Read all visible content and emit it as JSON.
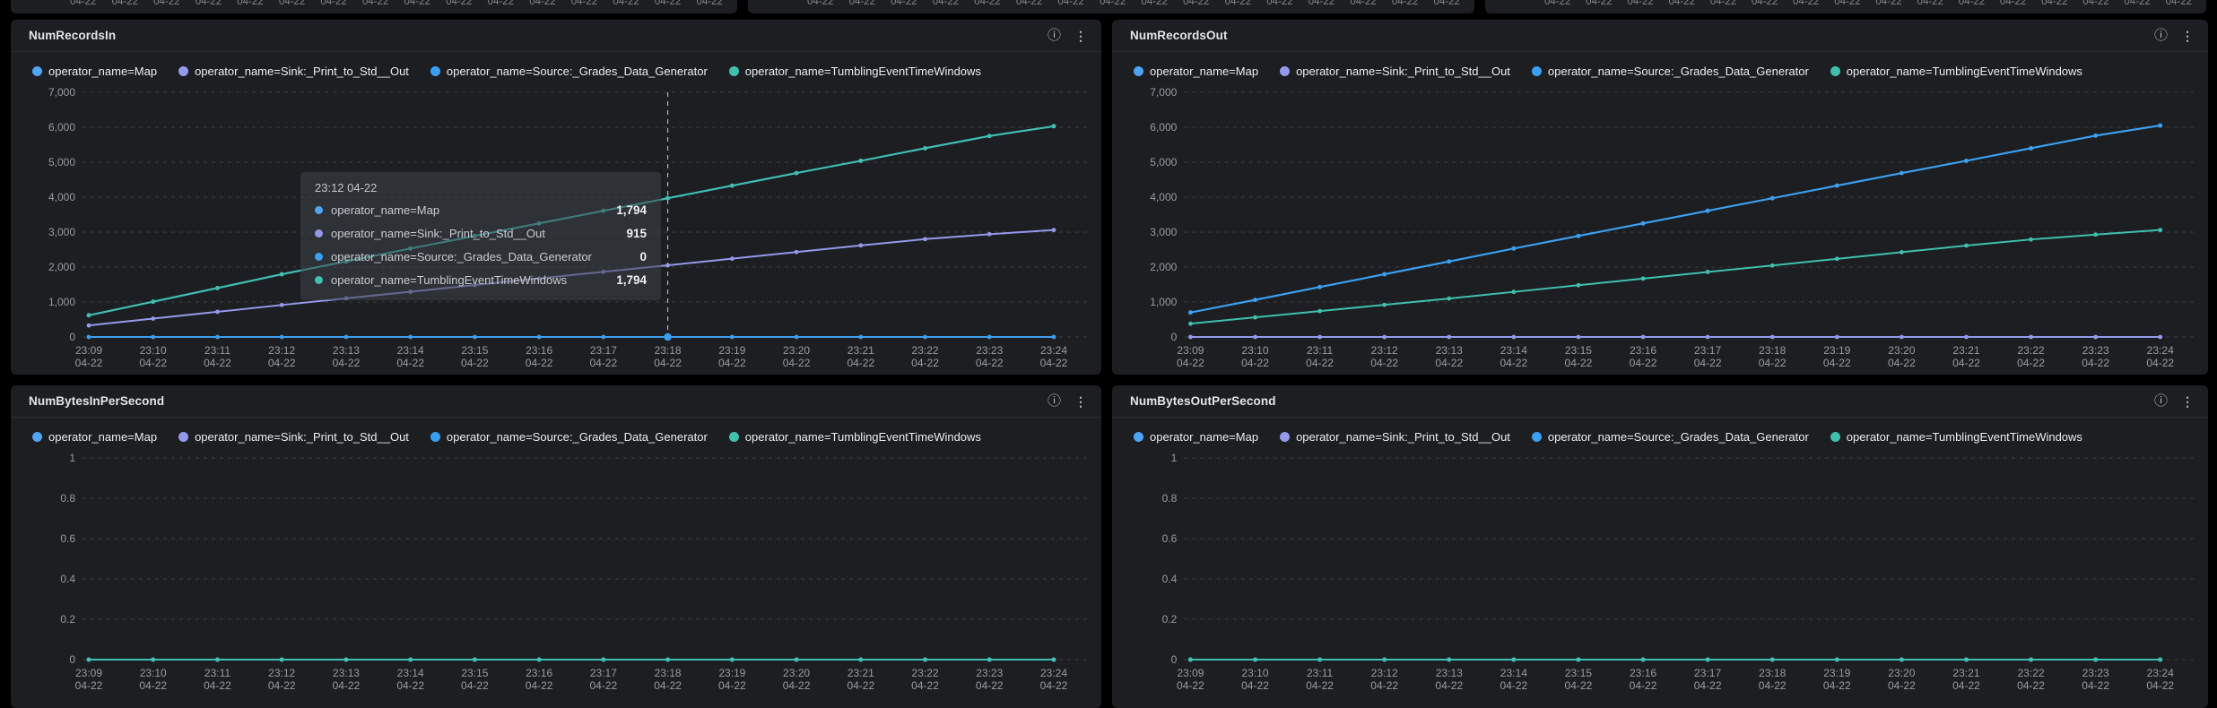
{
  "colors": {
    "page_bg": "#000000",
    "panel_bg": "#1c1e21",
    "grid_line": "#3a3d41",
    "axis_text": "#989ca1",
    "crosshair": "#c9cbce",
    "map": "#4FA5F3",
    "sink": "#9599EB",
    "source": "#3B9FF1",
    "tumbling": "#40C0B0"
  },
  "top_strip": {
    "clipped_axis_label": "04-22",
    "repeat": 16
  },
  "header_icons": [
    {
      "name": "info-icon",
      "glyph": "ⓘ"
    },
    {
      "name": "kebab-icon",
      "glyph": "⋮"
    }
  ],
  "panels": [
    {
      "title": "NumRecordsIn",
      "legend": [
        {
          "label": "operator_name=Map",
          "color": "#4FA5F3"
        },
        {
          "label": "operator_name=Sink:_Print_to_Std__Out",
          "color": "#9599EB"
        },
        {
          "label": "operator_name=Source:_Grades_Data_Generator",
          "color": "#3B9FF1"
        },
        {
          "label": "operator_name=TumblingEventTimeWindows",
          "color": "#40C0B0"
        }
      ],
      "chart_data": {
        "type": "line",
        "title": "NumRecordsIn",
        "x": [
          "23:09",
          "23:10",
          "23:11",
          "23:12",
          "23:13",
          "23:14",
          "23:15",
          "23:16",
          "23:17",
          "23:18",
          "23:19",
          "23:20",
          "23:21",
          "23:22",
          "23:23",
          "23:24"
        ],
        "x_date": "04-22",
        "ylim": [
          0,
          7000
        ],
        "yticks": [
          0,
          1000,
          2000,
          3000,
          4000,
          5000,
          6000,
          7000
        ],
        "grid": true,
        "legend_position": "top",
        "series": [
          {
            "name": "operator_name=Map",
            "color": "#4FA5F3",
            "values": [
              620,
              1010,
              1400,
              1794,
              2160,
              2530,
              2890,
              3250,
              3610,
              3970,
              4330,
              4690,
              5040,
              5400,
              5750,
              6030
            ]
          },
          {
            "name": "operator_name=Sink:_Print_to_Std__Out",
            "color": "#9599EB",
            "values": [
              330,
              525,
              720,
              915,
              1105,
              1295,
              1485,
              1675,
              1865,
              2050,
              2240,
              2430,
              2620,
              2800,
              2940,
              3060
            ]
          },
          {
            "name": "operator_name=Source:_Grades_Data_Generator",
            "color": "#3B9FF1",
            "values": [
              0,
              0,
              0,
              0,
              0,
              0,
              0,
              0,
              0,
              0,
              0,
              0,
              0,
              0,
              0,
              0
            ]
          },
          {
            "name": "operator_name=TumblingEventTimeWindows",
            "color": "#40C0B0",
            "values": [
              620,
              1010,
              1400,
              1794,
              2160,
              2530,
              2890,
              3250,
              3610,
              3970,
              4330,
              4690,
              5040,
              5400,
              5750,
              6030
            ]
          }
        ]
      },
      "tooltip": {
        "header": "23:12 04-22",
        "crosshair_tick": "23:18",
        "rows": [
          {
            "label": "operator_name=Map",
            "value": "1,794",
            "color": "#4FA5F3"
          },
          {
            "label": "operator_name=Sink:_Print_to_Std__Out",
            "value": "915",
            "color": "#9599EB"
          },
          {
            "label": "operator_name=Source:_Grades_Data_Generator",
            "value": "0",
            "color": "#3B9FF1"
          },
          {
            "label": "operator_name=TumblingEventTimeWindows",
            "value": "1,794",
            "color": "#40C0B0"
          }
        ]
      }
    },
    {
      "title": "NumRecordsOut",
      "legend": [
        {
          "label": "operator_name=Map",
          "color": "#4FA5F3"
        },
        {
          "label": "operator_name=Sink:_Print_to_Std__Out",
          "color": "#9599EB"
        },
        {
          "label": "operator_name=Source:_Grades_Data_Generator",
          "color": "#3B9FF1"
        },
        {
          "label": "operator_name=TumblingEventTimeWindows",
          "color": "#40C0B0"
        }
      ],
      "chart_data": {
        "type": "line",
        "title": "NumRecordsOut",
        "x": [
          "23:09",
          "23:10",
          "23:11",
          "23:12",
          "23:13",
          "23:14",
          "23:15",
          "23:16",
          "23:17",
          "23:18",
          "23:19",
          "23:20",
          "23:21",
          "23:22",
          "23:23",
          "23:24"
        ],
        "x_date": "04-22",
        "ylim": [
          0,
          7000
        ],
        "yticks": [
          0,
          1000,
          2000,
          3000,
          4000,
          5000,
          6000,
          7000
        ],
        "grid": true,
        "legend_position": "top",
        "series": [
          {
            "name": "operator_name=Map",
            "color": "#4FA5F3",
            "values": [
              700,
              1060,
              1430,
              1794,
              2160,
              2530,
              2890,
              3250,
              3610,
              3970,
              4330,
              4690,
              5040,
              5400,
              5760,
              6050
            ]
          },
          {
            "name": "operator_name=Sink:_Print_to_Std__Out",
            "color": "#9599EB",
            "values": [
              0,
              0,
              0,
              0,
              0,
              0,
              0,
              0,
              0,
              0,
              0,
              0,
              0,
              0,
              0,
              0
            ]
          },
          {
            "name": "operator_name=Source:_Grades_Data_Generator",
            "color": "#3B9FF1",
            "values": [
              700,
              1060,
              1430,
              1794,
              2160,
              2530,
              2890,
              3250,
              3610,
              3970,
              4330,
              4690,
              5040,
              5400,
              5760,
              6050
            ]
          },
          {
            "name": "operator_name=TumblingEventTimeWindows",
            "color": "#40C0B0",
            "values": [
              380,
              560,
              740,
              920,
              1100,
              1290,
              1480,
              1670,
              1860,
              2045,
              2235,
              2425,
              2615,
              2790,
              2930,
              3060
            ]
          }
        ]
      }
    },
    {
      "title": "NumBytesInPerSecond",
      "legend": [
        {
          "label": "operator_name=Map",
          "color": "#4FA5F3"
        },
        {
          "label": "operator_name=Sink:_Print_to_Std__Out",
          "color": "#9599EB"
        },
        {
          "label": "operator_name=Source:_Grades_Data_Generator",
          "color": "#3B9FF1"
        },
        {
          "label": "operator_name=TumblingEventTimeWindows",
          "color": "#40C0B0"
        }
      ],
      "chart_data": {
        "type": "line",
        "title": "NumBytesInPerSecond",
        "x": [
          "23:09",
          "23:10",
          "23:11",
          "23:12",
          "23:13",
          "23:14",
          "23:15",
          "23:16",
          "23:17",
          "23:18",
          "23:19",
          "23:20",
          "23:21",
          "23:22",
          "23:23",
          "23:24"
        ],
        "x_date": "04-22",
        "ylim": [
          0,
          1
        ],
        "yticks": [
          0,
          0.2,
          0.4,
          0.6,
          0.8,
          1
        ],
        "grid": true,
        "legend_position": "top",
        "series": [
          {
            "name": "operator_name=Map",
            "color": "#4FA5F3",
            "values": [
              0,
              0,
              0,
              0,
              0,
              0,
              0,
              0,
              0,
              0,
              0,
              0,
              0,
              0,
              0,
              0
            ]
          },
          {
            "name": "operator_name=Sink:_Print_to_Std__Out",
            "color": "#9599EB",
            "values": [
              0,
              0,
              0,
              0,
              0,
              0,
              0,
              0,
              0,
              0,
              0,
              0,
              0,
              0,
              0,
              0
            ]
          },
          {
            "name": "operator_name=Source:_Grades_Data_Generator",
            "color": "#3B9FF1",
            "values": [
              0,
              0,
              0,
              0,
              0,
              0,
              0,
              0,
              0,
              0,
              0,
              0,
              0,
              0,
              0,
              0
            ]
          },
          {
            "name": "operator_name=TumblingEventTimeWindows",
            "color": "#40C0B0",
            "values": [
              0,
              0,
              0,
              0,
              0,
              0,
              0,
              0,
              0,
              0,
              0,
              0,
              0,
              0,
              0,
              0
            ]
          }
        ]
      }
    },
    {
      "title": "NumBytesOutPerSecond",
      "legend": [
        {
          "label": "operator_name=Map",
          "color": "#4FA5F3"
        },
        {
          "label": "operator_name=Sink:_Print_to_Std__Out",
          "color": "#9599EB"
        },
        {
          "label": "operator_name=Source:_Grades_Data_Generator",
          "color": "#3B9FF1"
        },
        {
          "label": "operator_name=TumblingEventTimeWindows",
          "color": "#40C0B0"
        }
      ],
      "chart_data": {
        "type": "line",
        "title": "NumBytesOutPerSecond",
        "x": [
          "23:09",
          "23:10",
          "23:11",
          "23:12",
          "23:13",
          "23:14",
          "23:15",
          "23:16",
          "23:17",
          "23:18",
          "23:19",
          "23:20",
          "23:21",
          "23:22",
          "23:23",
          "23:24"
        ],
        "x_date": "04-22",
        "ylim": [
          0,
          1
        ],
        "yticks": [
          0,
          0.2,
          0.4,
          0.6,
          0.8,
          1
        ],
        "grid": true,
        "legend_position": "top",
        "series": [
          {
            "name": "operator_name=Map",
            "color": "#4FA5F3",
            "values": [
              0,
              0,
              0,
              0,
              0,
              0,
              0,
              0,
              0,
              0,
              0,
              0,
              0,
              0,
              0,
              0
            ]
          },
          {
            "name": "operator_name=Sink:_Print_to_Std__Out",
            "color": "#9599EB",
            "values": [
              0,
              0,
              0,
              0,
              0,
              0,
              0,
              0,
              0,
              0,
              0,
              0,
              0,
              0,
              0,
              0
            ]
          },
          {
            "name": "operator_name=Source:_Grades_Data_Generator",
            "color": "#3B9FF1",
            "values": [
              0,
              0,
              0,
              0,
              0,
              0,
              0,
              0,
              0,
              0,
              0,
              0,
              0,
              0,
              0,
              0
            ]
          },
          {
            "name": "operator_name=TumblingEventTimeWindows",
            "color": "#40C0B0",
            "values": [
              0,
              0,
              0,
              0,
              0,
              0,
              0,
              0,
              0,
              0,
              0,
              0,
              0,
              0,
              0,
              0
            ]
          }
        ]
      }
    }
  ]
}
